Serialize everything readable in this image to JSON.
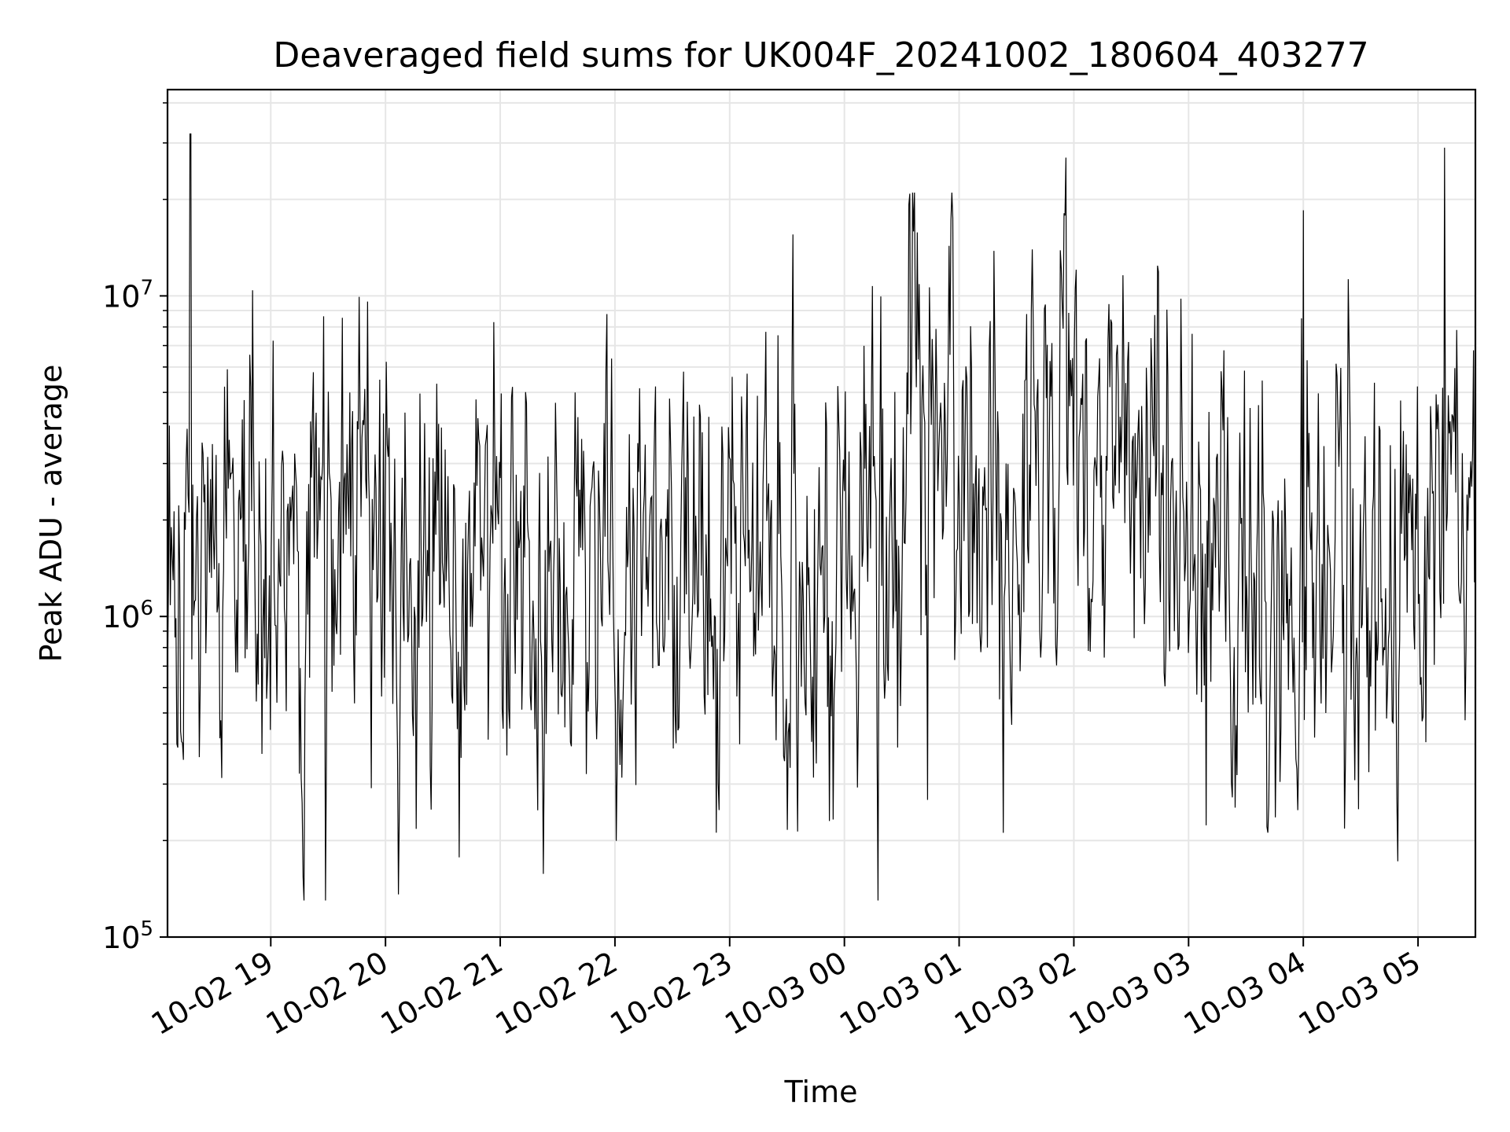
{
  "chart_data": {
    "type": "line",
    "title": "Deaveraged field sums for UK004F_20241002_180604_403277",
    "xlabel": "Time",
    "ylabel": "Peak ADU - average",
    "yscale": "log",
    "ylim": [
      100000,
      44000000
    ],
    "xlim": [
      "2024-10-02 18:06",
      "2024-10-03 05:30"
    ],
    "grid": true,
    "line_color": "#000000",
    "grid_color": "#e6e6e6",
    "x_tick_labels": [
      "10-02 19",
      "10-02 20",
      "10-02 21",
      "10-02 22",
      "10-02 23",
      "10-03 00",
      "10-03 01",
      "10-03 02",
      "10-03 03",
      "10-03 04",
      "10-03 05"
    ],
    "x_tick_values": [
      "2024-10-02 19:00",
      "2024-10-02 20:00",
      "2024-10-02 21:00",
      "2024-10-02 22:00",
      "2024-10-02 23:00",
      "2024-10-03 00:00",
      "2024-10-03 01:00",
      "2024-10-03 02:00",
      "2024-10-03 03:00",
      "2024-10-03 04:00",
      "2024-10-03 05:00"
    ],
    "y_tick_labels": [
      {
        "value": 100000,
        "base": "10",
        "exp": "5"
      },
      {
        "value": 1000000,
        "base": "10",
        "exp": "6"
      },
      {
        "value": 10000000,
        "base": "10",
        "exp": "7"
      }
    ],
    "series": [
      {
        "x": [
          "2024-10-02 18:06",
          "2024-10-02 18:18",
          "2024-10-02 18:30",
          "2024-10-02 18:42",
          "2024-10-02 18:54",
          "2024-10-02 19:06",
          "2024-10-02 19:18",
          "2024-10-02 19:30",
          "2024-10-02 19:42",
          "2024-10-02 19:54",
          "2024-10-02 20:06",
          "2024-10-02 20:18",
          "2024-10-02 20:30",
          "2024-10-02 20:42",
          "2024-10-02 20:54",
          "2024-10-02 21:06",
          "2024-10-02 21:18",
          "2024-10-02 21:30",
          "2024-10-02 21:42",
          "2024-10-02 21:54",
          "2024-10-02 22:06",
          "2024-10-02 22:18",
          "2024-10-02 22:30",
          "2024-10-02 22:42",
          "2024-10-02 22:54",
          "2024-10-02 23:06",
          "2024-10-02 23:18",
          "2024-10-02 23:30",
          "2024-10-02 23:42",
          "2024-10-02 23:54",
          "2024-10-03 00:06",
          "2024-10-03 00:18",
          "2024-10-03 00:30",
          "2024-10-03 00:42",
          "2024-10-03 00:54",
          "2024-10-03 01:06",
          "2024-10-03 01:18",
          "2024-10-03 01:30",
          "2024-10-03 01:42",
          "2024-10-03 01:54",
          "2024-10-03 02:06",
          "2024-10-03 02:18",
          "2024-10-03 02:30",
          "2024-10-03 02:42",
          "2024-10-03 02:54",
          "2024-10-03 03:06",
          "2024-10-03 03:18",
          "2024-10-03 03:30",
          "2024-10-03 03:42",
          "2024-10-03 03:54",
          "2024-10-03 04:06",
          "2024-10-03 04:18",
          "2024-10-03 04:30",
          "2024-10-03 04:42",
          "2024-10-03 04:54",
          "2024-10-03 05:06",
          "2024-10-03 05:18",
          "2024-10-03 05:30"
        ],
        "y": [
          1200000,
          1800000,
          2000000,
          1500000,
          1400000,
          1500000,
          1300000,
          1800000,
          1400000,
          1500000,
          1800000,
          1600000,
          1400000,
          1300000,
          1200000,
          1300000,
          1100000,
          1200000,
          1100000,
          1100000,
          1200000,
          1300000,
          1200000,
          1100000,
          1200000,
          1200000,
          1100000,
          1100000,
          1200000,
          1300000,
          1400000,
          1700000,
          1900000,
          2100000,
          2500000,
          2700000,
          2800000,
          2700000,
          2600000,
          2900000,
          3000000,
          2600000,
          2500000,
          2700000,
          2900000,
          2200000,
          1300000,
          1100000,
          1000000,
          1100000,
          1200000,
          1300000,
          1100000,
          1300000,
          1200000,
          2000000,
          2500000,
          2300000
        ],
        "spikes": [
          {
            "x": "2024-10-02 18:18",
            "y": 32000000
          },
          {
            "x": "2024-10-03 01:56",
            "y": 27000000
          },
          {
            "x": "2024-10-03 04:00",
            "y": 18500000
          },
          {
            "x": "2024-10-03 05:14",
            "y": 29000000
          }
        ]
      }
    ]
  }
}
